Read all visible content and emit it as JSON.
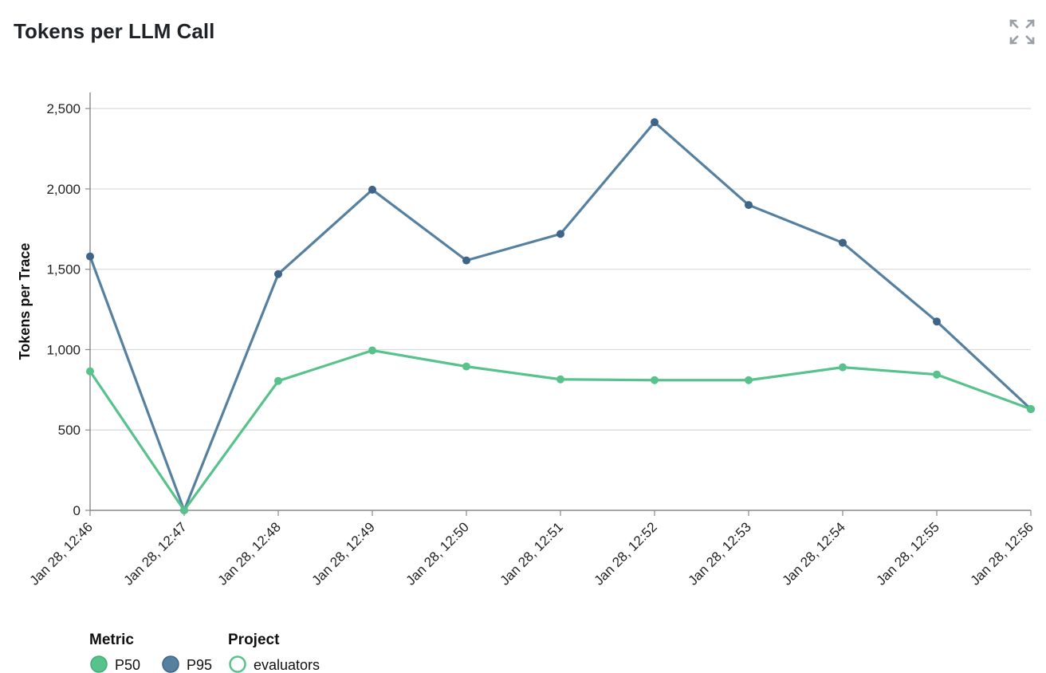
{
  "title": "Tokens per LLM Call",
  "expand_icon": "expand-icon",
  "colors": {
    "p50": "#58c28c",
    "p95": "#55809f",
    "p95_point": "#3e6588",
    "grid": "#d9d9d9",
    "axis": "#888888"
  },
  "chart_data": {
    "type": "line",
    "title": "Tokens per LLM Call",
    "ylabel": "Tokens per Trace",
    "xlabel": "",
    "ylim": [
      0,
      2600
    ],
    "yticks": [
      0,
      500,
      1000,
      1500,
      2000,
      2500
    ],
    "ytick_labels": [
      "0",
      "500",
      "1,000",
      "1,500",
      "2,000",
      "2,500"
    ],
    "categories": [
      "Jan 28, 12:46",
      "Jan 28, 12:47",
      "Jan 28, 12:48",
      "Jan 28, 12:49",
      "Jan 28, 12:50",
      "Jan 28, 12:51",
      "Jan 28, 12:52",
      "Jan 28, 12:53",
      "Jan 28, 12:54",
      "Jan 28, 12:55",
      "Jan 28, 12:56"
    ],
    "grid": true,
    "legend_position": "bottom-left",
    "series": [
      {
        "name": "P95",
        "color": "#55809f",
        "values": [
          1580,
          0,
          1470,
          1995,
          1555,
          1720,
          2415,
          1900,
          1665,
          1175,
          630
        ]
      },
      {
        "name": "P50",
        "color": "#58c28c",
        "values": [
          865,
          0,
          805,
          995,
          895,
          815,
          810,
          810,
          890,
          845,
          630
        ]
      }
    ]
  },
  "legend": {
    "metric_title": "Metric",
    "metric_items": [
      {
        "label": "P50",
        "color": "#58c28c"
      },
      {
        "label": "P95",
        "color": "#55809f"
      }
    ],
    "project_title": "Project",
    "project_items": [
      {
        "label": "evaluators",
        "color": "#58c28c"
      }
    ]
  }
}
